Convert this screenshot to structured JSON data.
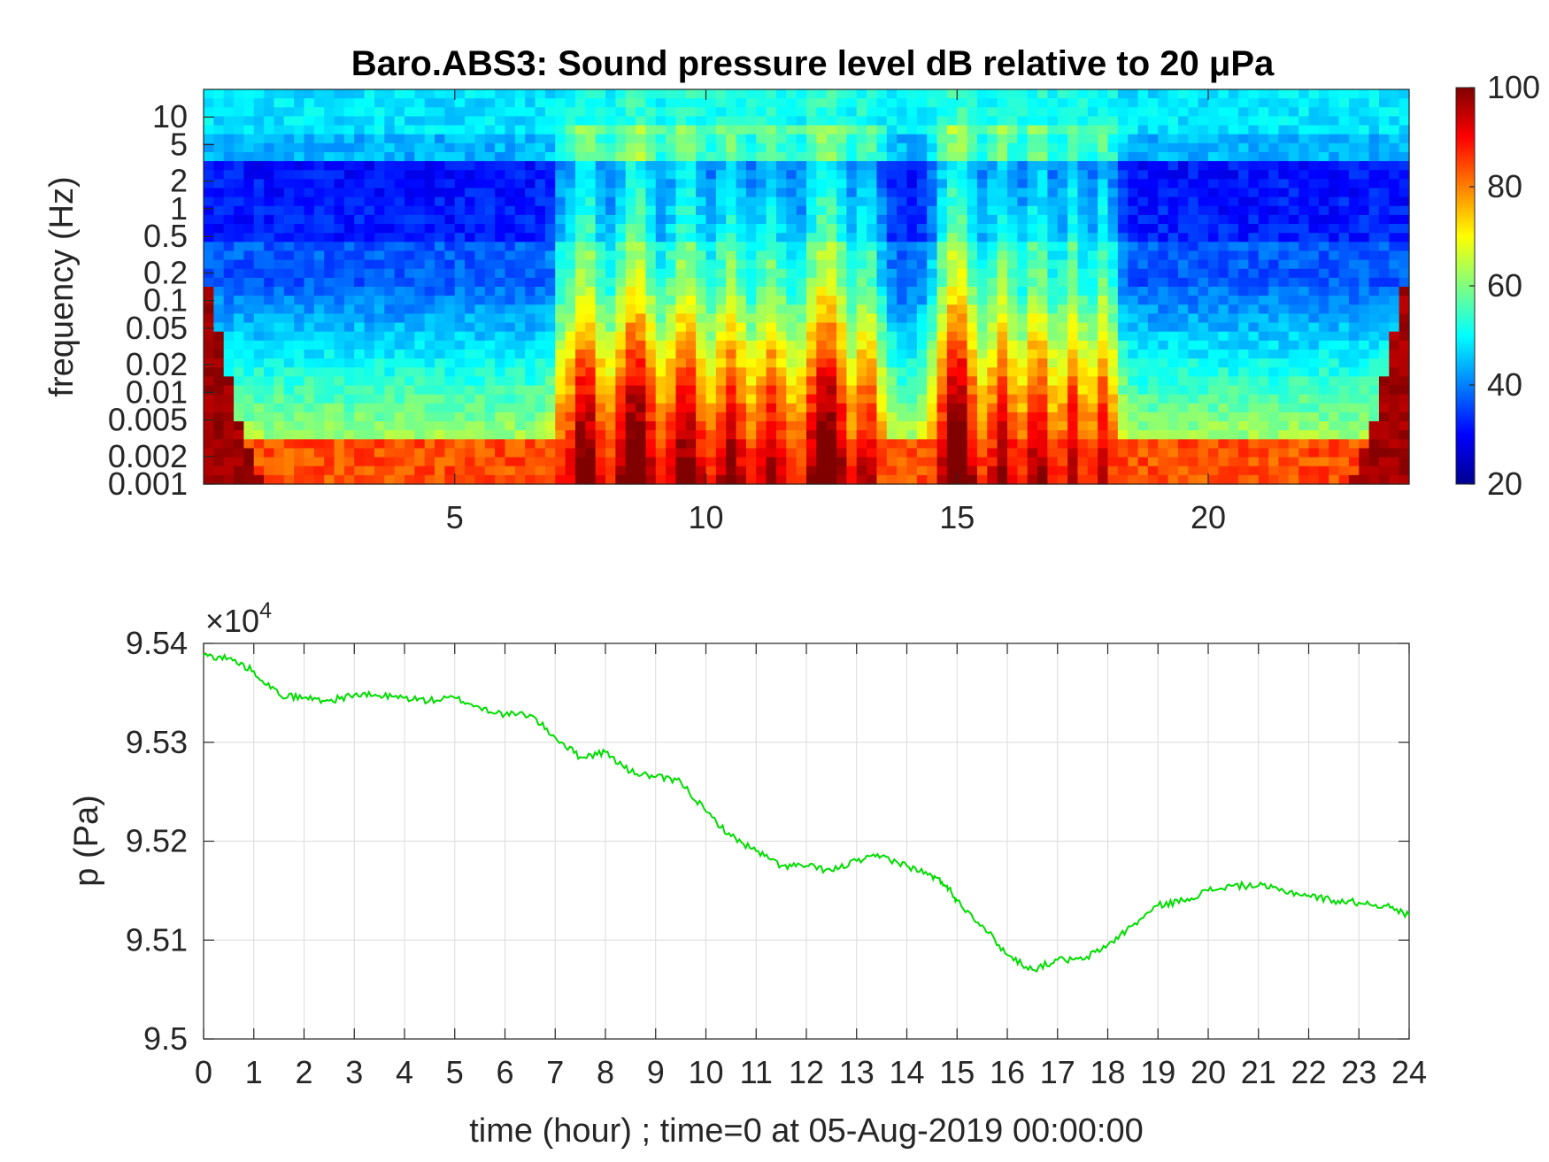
{
  "figure_title": "Baro.ABS3: Sound pressure level dB relative to 20 μPa",
  "chart_data": [
    {
      "type": "heatmap",
      "title": "Baro.ABS3: Sound pressure level dB relative to 20 μPa",
      "xlabel": "",
      "ylabel": "frequency (Hz)",
      "xlim": [
        0,
        24
      ],
      "ylim": [
        0.001,
        20
      ],
      "yscale": "log",
      "x_ticks": [
        5,
        10,
        15,
        20
      ],
      "y_ticks": [
        0.001,
        0.002,
        0.005,
        0.01,
        0.02,
        0.05,
        0.1,
        0.2,
        0.5,
        1,
        2,
        5,
        10
      ],
      "y_tick_labels": [
        "0.001",
        "0.002",
        "0.005",
        "0.01",
        "0.02",
        "0.05",
        "0.1",
        "0.2",
        "0.5",
        "1",
        "2",
        "5",
        "10"
      ],
      "colorbar": {
        "range": [
          20,
          100
        ],
        "ticks": [
          20,
          40,
          60,
          80,
          100
        ],
        "colormap": "jet"
      },
      "high_activity_bands_hours": [
        [
          7,
          13.5
        ],
        [
          14.5,
          18.2
        ]
      ],
      "peak_intensity_hours": [
        8.5,
        12.5,
        15
      ]
    },
    {
      "type": "line",
      "title": "",
      "xlabel": "time (hour) ; time=0 at 05-Aug-2019 00:00:00",
      "ylabel": "p (Pa)",
      "y_multiplier_label": "×10",
      "y_multiplier_exponent": "4",
      "xlim": [
        0,
        24
      ],
      "ylim": [
        9.5,
        9.54
      ],
      "x_ticks": [
        0,
        1,
        2,
        3,
        4,
        5,
        6,
        7,
        8,
        9,
        10,
        11,
        12,
        13,
        14,
        15,
        16,
        17,
        18,
        19,
        20,
        21,
        22,
        23,
        24
      ],
      "y_ticks": [
        9.5,
        9.51,
        9.52,
        9.53,
        9.54
      ],
      "y_tick_labels": [
        "9.5",
        "9.51",
        "9.52",
        "9.53",
        "9.54"
      ],
      "grid": true,
      "line_color": "#00dd00",
      "x": [
        0,
        0.5,
        1,
        1.5,
        2,
        2.5,
        3,
        3.5,
        4,
        4.5,
        5,
        5.5,
        6,
        6.5,
        7,
        7.5,
        8,
        8.5,
        9,
        9.5,
        10,
        10.5,
        11,
        11.5,
        12,
        12.5,
        13,
        13.5,
        14,
        14.5,
        14.8,
        15,
        15.5,
        16,
        16.5,
        17,
        17.5,
        18,
        18.5,
        19,
        19.5,
        20,
        20.5,
        21,
        21.5,
        22,
        22.5,
        23,
        23.5,
        24
      ],
      "y": [
        9.5388,
        9.5385,
        9.5372,
        9.5348,
        9.5345,
        9.5342,
        9.5348,
        9.5347,
        9.5345,
        9.5342,
        9.5345,
        9.5335,
        9.5328,
        9.5328,
        9.5305,
        9.5285,
        9.529,
        9.527,
        9.5265,
        9.526,
        9.523,
        9.5205,
        9.519,
        9.5175,
        9.5175,
        9.517,
        9.518,
        9.5185,
        9.5175,
        9.5165,
        9.5155,
        9.514,
        9.5115,
        9.5085,
        9.507,
        9.508,
        9.508,
        9.5095,
        9.5115,
        9.5135,
        9.514,
        9.515,
        9.5155,
        9.5155,
        9.515,
        9.5145,
        9.514,
        9.5138,
        9.5135,
        9.5125
      ]
    }
  ]
}
